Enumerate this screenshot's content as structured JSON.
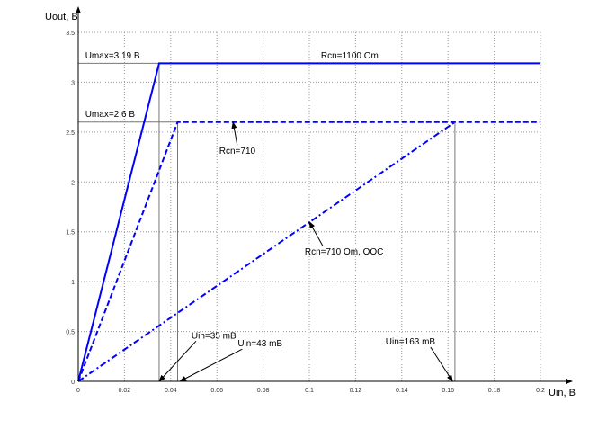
{
  "chart_data": {
    "type": "line",
    "xlabel": "Uin, B",
    "ylabel": "Uout, B",
    "xlim": [
      0,
      0.2
    ],
    "ylim": [
      0,
      3.5
    ],
    "xticks": [
      "0",
      "0.02",
      "0.04",
      "0.06",
      "0.08",
      "0.1",
      "0.12",
      "0.14",
      "0.16",
      "0.18",
      "0.2"
    ],
    "yticks": [
      "0",
      "0.5",
      "1",
      "1.5",
      "2",
      "2.5",
      "3",
      "3.5"
    ],
    "grid": true,
    "series": [
      {
        "style": "solid",
        "color": "#0000ff",
        "x": [
          0,
          0.035,
          0.2
        ],
        "y": [
          0,
          3.19,
          3.19
        ]
      },
      {
        "style": "dashed",
        "color": "#0000ff",
        "x": [
          0,
          0.043,
          0.2
        ],
        "y": [
          0,
          2.6,
          2.6
        ]
      },
      {
        "style": "dashdot",
        "color": "#0000ff",
        "x": [
          0,
          0.163
        ],
        "y": [
          0,
          2.6
        ]
      }
    ],
    "reference_lines": {
      "h": [
        3.19,
        2.6
      ],
      "v": [
        0.035,
        0.043,
        0.163
      ]
    },
    "annotations": [
      {
        "text": "Umax=3,19 B",
        "x": 0.003,
        "y": 3.24
      },
      {
        "text": "Umax=2.6 B",
        "x": 0.003,
        "y": 2.65
      },
      {
        "text": "Rcn=1100 Om",
        "x": 0.105,
        "y": 3.24
      },
      {
        "text": "Rcn=710",
        "x": 0.061,
        "y": 2.28,
        "arrow_to": [
          0.067,
          2.6
        ]
      },
      {
        "text": "Rcn=710 Om, OOC",
        "x": 0.098,
        "y": 1.27,
        "arrow_to": [
          0.1,
          1.6
        ]
      },
      {
        "text": "Uin=35 mB",
        "x": 0.049,
        "y": 0.43,
        "arrow_to": [
          0.035,
          0
        ]
      },
      {
        "text": "Uin=43 mB",
        "x": 0.069,
        "y": 0.35,
        "arrow_to": [
          0.044,
          0
        ]
      },
      {
        "text": "Uin=163 mB",
        "x": 0.133,
        "y": 0.37,
        "arrow_to": [
          0.162,
          0
        ]
      }
    ]
  }
}
